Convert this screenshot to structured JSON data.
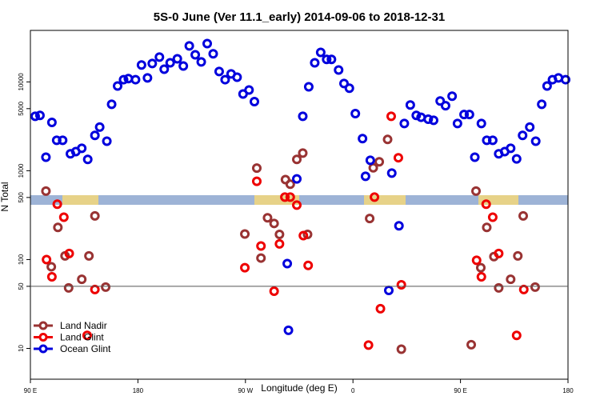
{
  "chart_data": {
    "type": "scatter",
    "title": "5S-0 June (Ver 11.1_early)   2014-09-06 to 2018-12-31",
    "xlabel": "Longitude (deg E)",
    "ylabel": "N Total",
    "xlim": [
      90,
      540
    ],
    "ylim": [
      4.5,
      38000
    ],
    "log_y": true,
    "xticks": [
      {
        "value": 90,
        "label": "90 E"
      },
      180,
      {
        "value": 270,
        "label": "90 W"
      },
      {
        "value": 360,
        "label": "0"
      },
      {
        "value": 450,
        "label": "90 E"
      },
      {
        "value": 540,
        "label": "180"
      }
    ],
    "yticks": [
      10,
      50,
      100,
      500,
      1000,
      5000,
      10000
    ],
    "hline": 50,
    "legend": "lower left",
    "series": [
      {
        "name": "Land Nadir",
        "color": "#993333",
        "x": [
          103,
          107.5,
          113,
          119,
          122,
          133,
          139,
          144,
          153,
          269.5,
          279.5,
          283,
          288.5,
          294,
          298.5,
          303.5,
          307.5,
          313,
          318,
          322,
          374,
          377,
          382,
          389,
          400.5,
          459,
          463,
          467,
          472,
          478,
          482,
          492,
          498,
          502.5,
          512.5
        ],
        "values": [
          590,
          83,
          230,
          110,
          48,
          60,
          110,
          310,
          49,
          194,
          1070,
          104,
          295,
          255,
          192,
          795,
          705,
          1340,
          1580,
          192,
          290,
          1080,
          1260,
          2250,
          9.8,
          11,
          590,
          81,
          230,
          108,
          48,
          60,
          110,
          310,
          49
        ]
      },
      {
        "name": "Land Glint",
        "color": "#ee0000",
        "x": [
          103.5,
          108,
          112.5,
          118,
          122.5,
          137.5,
          144,
          269.5,
          279.5,
          283,
          294,
          298.5,
          303,
          307.5,
          313,
          318.5,
          322.5,
          373,
          378,
          383,
          392,
          398,
          400.5,
          463.5,
          467.5,
          471.5,
          477,
          482,
          497,
          503
        ],
        "values": [
          100,
          64,
          420,
          300,
          117,
          14,
          46,
          81,
          760,
          142,
          44,
          150,
          505,
          505,
          410,
          186,
          86,
          10.9,
          505,
          28,
          4100,
          1400,
          52,
          98,
          64,
          420,
          300,
          117,
          14,
          46
        ]
      },
      {
        "name": "Ocean Glint",
        "color": "#0000dd",
        "x": [
          94,
          98,
          103,
          108,
          112,
          117,
          123.5,
          128,
          133,
          138,
          144,
          148,
          154,
          158,
          163,
          168,
          172,
          178,
          183,
          188,
          192,
          198,
          202,
          207,
          213,
          218,
          223,
          228,
          233,
          238,
          243,
          248,
          253,
          258,
          263,
          268,
          273,
          277.5,
          305,
          306,
          313,
          318,
          323,
          328,
          333,
          338,
          342,
          348,
          352.5,
          357,
          362,
          368,
          370.5,
          374.5,
          390,
          392.5,
          398.5,
          403,
          408,
          413,
          417,
          423,
          427.5,
          433,
          437.5,
          443,
          447.5,
          453,
          457.5,
          462,
          467.5,
          472,
          477,
          482,
          487,
          492,
          497,
          502,
          508,
          513,
          518,
          522.5,
          527,
          532,
          538
        ],
        "values": [
          4100,
          4200,
          1420,
          3500,
          2200,
          2200,
          1550,
          1640,
          1790,
          1340,
          2500,
          3100,
          2150,
          5600,
          9000,
          10600,
          10900,
          10600,
          15500,
          11100,
          16100,
          19000,
          13900,
          16400,
          18200,
          15100,
          25400,
          20200,
          16800,
          27000,
          20700,
          13100,
          10600,
          12300,
          11300,
          7300,
          8100,
          6000,
          90,
          16,
          810,
          4100,
          8800,
          16400,
          21500,
          17900,
          17900,
          13600,
          9600,
          8500,
          4400,
          2300,
          865,
          1310,
          45,
          940,
          240,
          3400,
          5500,
          4200,
          4000,
          3800,
          3700,
          6100,
          5400,
          6900,
          3400,
          4300,
          4300,
          1420,
          3400,
          2200,
          2200,
          1550,
          1640,
          1790,
          1360,
          2500,
          3100,
          2150,
          5600,
          9000,
          10600,
          11100,
          10600
        ]
      }
    ]
  }
}
